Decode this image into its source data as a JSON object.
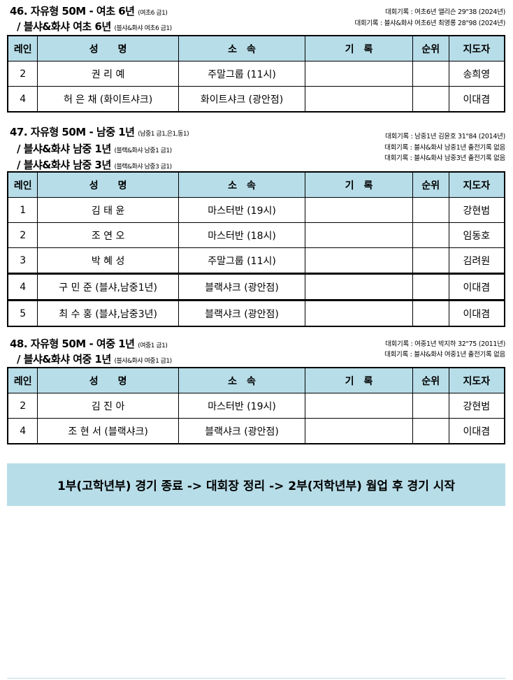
{
  "headers": [
    "레인",
    "성　　명",
    "소　속",
    "기　록",
    "순위",
    "지도자"
  ],
  "events": [
    {
      "title": "46. 자유형 50M - 여초 6년",
      "title_note": "(여초6 금1)",
      "subs": [
        {
          "text": "/  블샤&화샤 여초 6년",
          "note": "(블샤&화샤 여초6 금1)"
        }
      ],
      "records": [
        "대회기록 : 여초6년 앨리슨 29\"38 (2024년)",
        "대회기록 : 블샤&화샤 여초6년 최영롱 28\"98 (2024년)"
      ],
      "rows": [
        {
          "lane": "2",
          "name": "권 리 예",
          "team": "주말그룹 (11시)",
          "record": "",
          "rank": "",
          "coach": "송희영"
        },
        {
          "lane": "4",
          "name": "허 은 채 (화이트샤크)",
          "team": "화이트샤크 (광안점)",
          "record": "",
          "rank": "",
          "coach": "이대겸"
        }
      ]
    },
    {
      "title": "47. 자유형 50M - 남중 1년",
      "title_note": "(남중1 금1,은1,동1)",
      "subs": [
        {
          "text": "/  블샤&화샤 남중 1년",
          "note": "(블랙&화샤 남중1 금1)"
        },
        {
          "text": "/  블샤&화샤 남중 3년",
          "note": "(블랙&화샤 남중3 금1)"
        }
      ],
      "records": [
        "대회기록 : 남중1년 김윤호 31\"84 (2014년)",
        "대회기록 : 블샤&화샤 남중1년 출전기록 없음",
        "대회기록 : 블샤&화샤 남중3년 출전기록 없음"
      ],
      "rows": [
        {
          "lane": "1",
          "name": "김 태 윤",
          "team": "마스터반 (19시)",
          "record": "",
          "rank": "",
          "coach": "강현범"
        },
        {
          "lane": "2",
          "name": "조 연 오",
          "team": "마스터반 (18시)",
          "record": "",
          "rank": "",
          "coach": "임동호"
        },
        {
          "lane": "3",
          "name": "박 혜 성",
          "team": "주말그룹 (11시)",
          "record": "",
          "rank": "",
          "coach": "김려원"
        },
        {
          "lane": "4",
          "name": "구 민 준 (블샤,남중1년)",
          "team": "블랙샤크 (광안점)",
          "record": "",
          "rank": "",
          "coach": "이대겸"
        },
        {
          "lane": "5",
          "name": "최 수 홍 (블샤,남중3년)",
          "team": "블랙샤크 (광안점)",
          "record": "",
          "rank": "",
          "coach": "이대겸"
        }
      ]
    },
    {
      "title": "48. 자유형 50M - 여중 1년",
      "title_note": "(여중1 금1)",
      "subs": [
        {
          "text": "/  블샤&화샤 여중 1년",
          "note": " (블샤&화샤 여중1 금1)"
        }
      ],
      "records": [
        "대회기록 : 여중1년 박지하 32\"75 (2011년)",
        "대회기록 : 블샤&화샤 여중1년 출전기록 없음"
      ],
      "rows": [
        {
          "lane": "2",
          "name": "김 진 아",
          "team": "마스터반 (19시)",
          "record": "",
          "rank": "",
          "coach": "강현범"
        },
        {
          "lane": "4",
          "name": "조 현 서 (블랙샤크)",
          "team": "블랙샤크 (광안점)",
          "record": "",
          "rank": "",
          "coach": "이대겸"
        }
      ]
    }
  ],
  "banner": "1부(고학년부) 경기 종료 -> 대회장 정리 -> 2부(저학년부) 웜업 후 경기 시작"
}
